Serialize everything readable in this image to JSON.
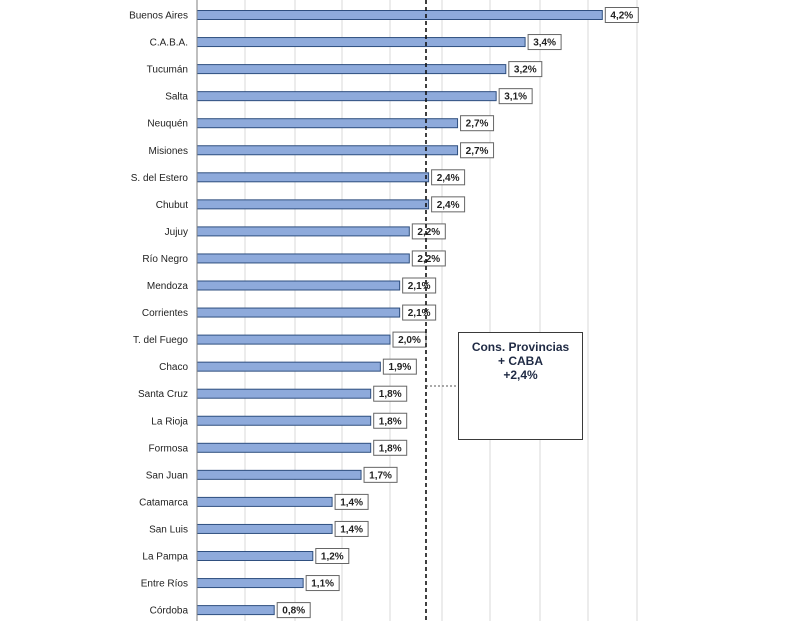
{
  "chart_data": {
    "type": "bar",
    "orientation": "horizontal",
    "categories": [
      "Buenos Aires",
      "C.A.B.A.",
      "Tucumán",
      "Salta",
      "Neuquén",
      "Misiones",
      "S. del Estero",
      "Chubut",
      "Jujuy",
      "Río Negro",
      "Mendoza",
      "Corrientes",
      "T. del Fuego",
      "Chaco",
      "Santa Cruz",
      "La Rioja",
      "Formosa",
      "San Juan",
      "Catamarca",
      "San Luis",
      "La Pampa",
      "Entre Ríos",
      "Córdoba"
    ],
    "values": [
      4.2,
      3.4,
      3.2,
      3.1,
      2.7,
      2.7,
      2.4,
      2.4,
      2.2,
      2.2,
      2.1,
      2.1,
      2.0,
      1.9,
      1.8,
      1.8,
      1.8,
      1.7,
      1.4,
      1.4,
      1.2,
      1.1,
      0.8
    ],
    "value_labels": [
      "4,2%",
      "3,4%",
      "3,2%",
      "3,1%",
      "2,7%",
      "2,7%",
      "2,4%",
      "2,4%",
      "2,2%",
      "2,2%",
      "2,1%",
      "2,1%",
      "2,0%",
      "1,9%",
      "1,8%",
      "1,8%",
      "1,8%",
      "1,7%",
      "1,4%",
      "1,4%",
      "1,2%",
      "1,1%",
      "0,8%"
    ],
    "reference_line": {
      "value": 2.4,
      "style": "dashed"
    },
    "xlim": [
      0,
      4.5
    ],
    "grid": true,
    "bar_color": "#8eaadb",
    "bar_border": "#2f4f7f",
    "callout": {
      "lines": [
        "Cons. Provincias",
        "+ CABA",
        "+2,4%"
      ]
    }
  }
}
